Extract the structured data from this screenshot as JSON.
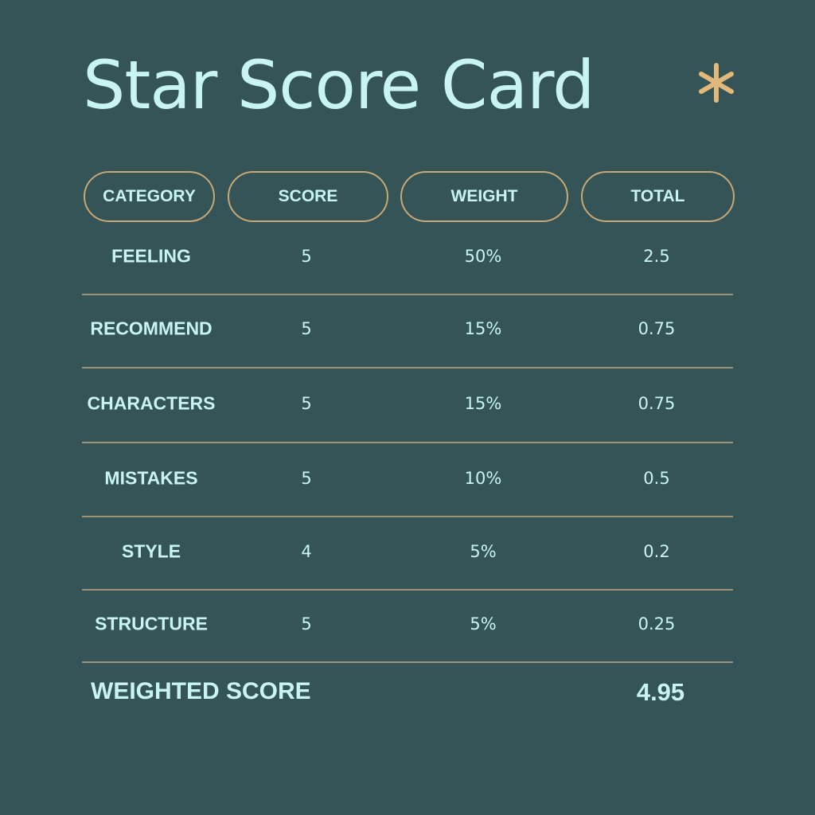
{
  "title": "Star Score Card",
  "icon": "asterisk-icon",
  "colors": {
    "background": "#345457",
    "text": "#c8f4f4",
    "accent": "#e3b97a"
  },
  "headers": [
    "CATEGORY",
    "SCORE",
    "WEIGHT",
    "TOTAL"
  ],
  "rows": [
    {
      "category": "FEELING",
      "score": "5",
      "weight": "50%",
      "total": "2.5"
    },
    {
      "category": "RECOMMEND",
      "score": "5",
      "weight": "15%",
      "total": "0.75"
    },
    {
      "category": "CHARACTERS",
      "score": "5",
      "weight": "15%",
      "total": "0.75"
    },
    {
      "category": "MISTAKES",
      "score": "5",
      "weight": "10%",
      "total": "0.5"
    },
    {
      "category": "STYLE",
      "score": "4",
      "weight": "5%",
      "total": "0.2"
    },
    {
      "category": "STRUCTURE",
      "score": "5",
      "weight": "5%",
      "total": "0.25"
    }
  ],
  "weighted_score": {
    "label": "WEIGHTED SCORE",
    "value": "4.95"
  }
}
